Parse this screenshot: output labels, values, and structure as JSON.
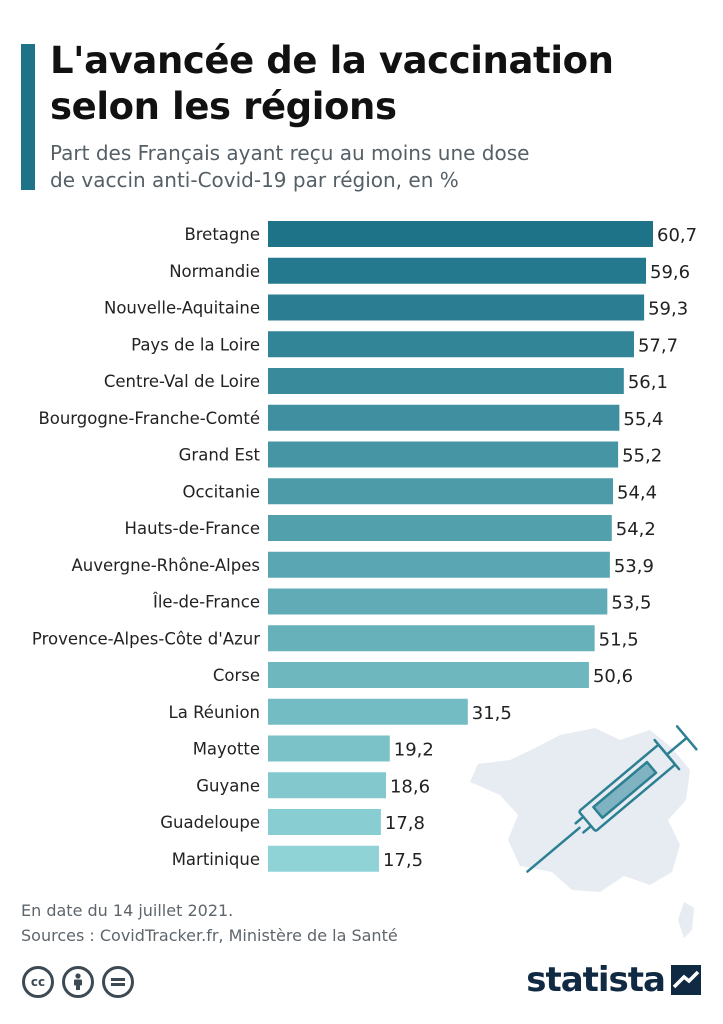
{
  "title": "L'avancée de la vaccination\nselon les régions",
  "subtitle": "Part des Français ayant reçu au moins une dose\nde vaccin anti-Covid-19 par région, en %",
  "chart_data": {
    "type": "bar",
    "orientation": "horizontal",
    "title": "L'avancée de la vaccination selon les régions",
    "subtitle": "Part des Français ayant reçu au moins une dose de vaccin anti-Covid-19 par région, en %",
    "categories": [
      "Bretagne",
      "Normandie",
      "Nouvelle-Aquitaine",
      "Pays de la Loire",
      "Centre-Val de Loire",
      "Bourgogne-Franche-Comté",
      "Grand Est",
      "Occitanie",
      "Hauts-de-France",
      "Auvergne-Rhône-Alpes",
      "Île-de-France",
      "Provence-Alpes-Côte d'Azur",
      "Corse",
      "La Réunion",
      "Mayotte",
      "Guyane",
      "Guadeloupe",
      "Martinique"
    ],
    "values": [
      60.7,
      59.6,
      59.3,
      57.7,
      56.1,
      55.4,
      55.2,
      54.4,
      54.2,
      53.9,
      53.5,
      51.5,
      50.6,
      31.5,
      19.2,
      18.6,
      17.8,
      17.5
    ],
    "value_labels": [
      "60,7",
      "59,6",
      "59,3",
      "57,7",
      "56,1",
      "55,4",
      "55,2",
      "54,4",
      "54,2",
      "53,9",
      "53,5",
      "51,5",
      "50,6",
      "31,5",
      "19,2",
      "18,6",
      "17,8",
      "17,5"
    ],
    "xlim": [
      0,
      60.7
    ],
    "grid": false,
    "colors": {
      "start": "#1e7389",
      "end": "#8fd3d6"
    }
  },
  "footer": {
    "date_note": "En date du 14 juillet 2021.",
    "sources": "Sources : CovidTracker.fr, Ministère de la Santé"
  },
  "license_icons": [
    "creative-commons-icon",
    "attribution-icon",
    "no-derivatives-icon"
  ],
  "brand": {
    "name": "statista",
    "color": "#102a43"
  },
  "accent_color": "#1e7389",
  "decor": {
    "map_color": "#e6ecf2",
    "syringe_color": "#2d7f92"
  }
}
